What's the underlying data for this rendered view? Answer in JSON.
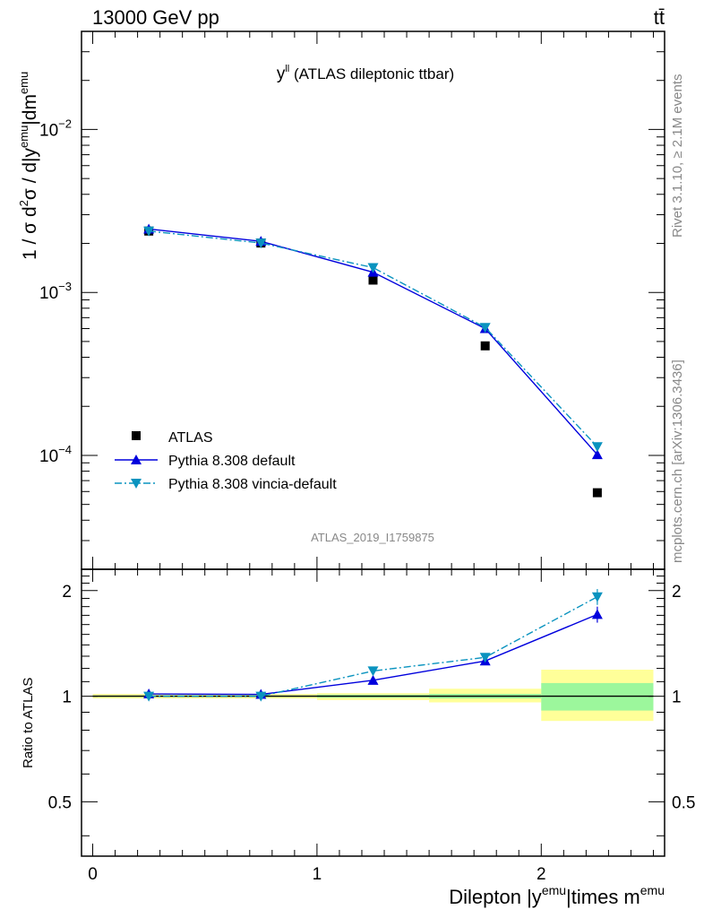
{
  "header": {
    "energy_label": "13000 GeV pp",
    "process_label": "tt̄"
  },
  "side_labels": {
    "rivet": "Rivet 3.1.10, ≥ 2.1M events",
    "mcplots": "mcplots.cern.ch [arXiv:1306.3436]"
  },
  "chart_data": [
    {
      "type": "scatter",
      "panel": "main",
      "title": {
        "main": "y",
        "sup": "ll",
        "rest": " (ATLAS dileptonic ttbar)"
      },
      "analysis_tag": "ATLAS_2019_I1759875",
      "yscale": "log",
      "ylim": [
        2e-05,
        0.04
      ],
      "xlim": [
        -0.05,
        2.55
      ],
      "ylabel": "1 / σ  d²σ / d|y^emu|dm^emu",
      "ytick_labels": [
        {
          "base": "10",
          "exp": "−2",
          "value": 0.01
        },
        {
          "base": "10",
          "exp": "−3",
          "value": 0.001
        },
        {
          "base": "10",
          "exp": "−4",
          "value": 0.0001
        }
      ],
      "legend_position": "bottom-left",
      "series": [
        {
          "name": "ATLAS",
          "marker": "square",
          "color": "#000000",
          "x": [
            0.25,
            0.75,
            1.25,
            1.75,
            2.25
          ],
          "y": [
            0.00238,
            0.00201,
            0.00119,
            0.00047,
            5.9e-05
          ]
        },
        {
          "name": "Pythia 8.308 default",
          "marker": "triangle-up",
          "line": "solid",
          "color": "#0000dd",
          "x": [
            0.25,
            0.75,
            1.25,
            1.75,
            2.25
          ],
          "y": [
            0.00245,
            0.00206,
            0.00133,
            0.0006,
            0.000101
          ]
        },
        {
          "name": "Pythia 8.308 vincia-default",
          "marker": "triangle-down",
          "line": "dashdot",
          "color": "#0a93bf",
          "x": [
            0.25,
            0.75,
            1.25,
            1.75,
            2.25
          ],
          "y": [
            0.00238,
            0.00201,
            0.00142,
            0.00061,
            0.000113
          ]
        }
      ]
    },
    {
      "type": "scatter",
      "panel": "ratio",
      "ylabel": "Ratio to ATLAS",
      "xlabel": {
        "a": "Dilepton |y",
        "a_sup": "emu",
        "b": "|times m",
        "b_sup": "emu"
      },
      "xlim": [
        -0.05,
        2.55
      ],
      "ylim": [
        0.35,
        2.3
      ],
      "x_tick_labels": [
        "0",
        "1",
        "2"
      ],
      "y_tick_labels": [
        "0.5",
        "1",
        "2"
      ],
      "band_colors": {
        "inner": "#9cf79c",
        "outer": "#ffff99"
      },
      "bands": [
        {
          "xlo": 0.0,
          "xhi": 0.5,
          "inner": [
            0.995,
            1.005
          ],
          "outer": [
            0.985,
            1.015
          ]
        },
        {
          "xlo": 0.5,
          "xhi": 1.0,
          "inner": [
            0.995,
            1.005
          ],
          "outer": [
            0.985,
            1.015
          ]
        },
        {
          "xlo": 1.0,
          "xhi": 1.5,
          "inner": [
            0.99,
            1.01
          ],
          "outer": [
            0.975,
            1.02
          ]
        },
        {
          "xlo": 1.5,
          "xhi": 2.0,
          "inner": [
            0.985,
            1.015
          ],
          "outer": [
            0.96,
            1.05
          ]
        },
        {
          "xlo": 2.0,
          "xhi": 2.5,
          "inner": [
            0.91,
            1.09
          ],
          "outer": [
            0.85,
            1.19
          ]
        }
      ],
      "series": [
        {
          "name": "Pythia 8.308 default",
          "marker": "triangle-up",
          "line": "solid",
          "color": "#0000dd",
          "x": [
            0.25,
            0.75,
            1.25,
            1.75,
            2.25
          ],
          "y": [
            1.015,
            1.012,
            1.11,
            1.26,
            1.71
          ],
          "yerr": [
            0.01,
            0.01,
            0.02,
            0.03,
            0.09
          ]
        },
        {
          "name": "Pythia 8.308 vincia-default",
          "marker": "triangle-down",
          "line": "dashdot",
          "color": "#0a93bf",
          "x": [
            0.25,
            0.75,
            1.25,
            1.75,
            2.25
          ],
          "y": [
            1.0,
            1.0,
            1.18,
            1.29,
            1.92
          ],
          "yerr": [
            0.01,
            0.01,
            0.02,
            0.03,
            0.1
          ]
        }
      ]
    }
  ]
}
